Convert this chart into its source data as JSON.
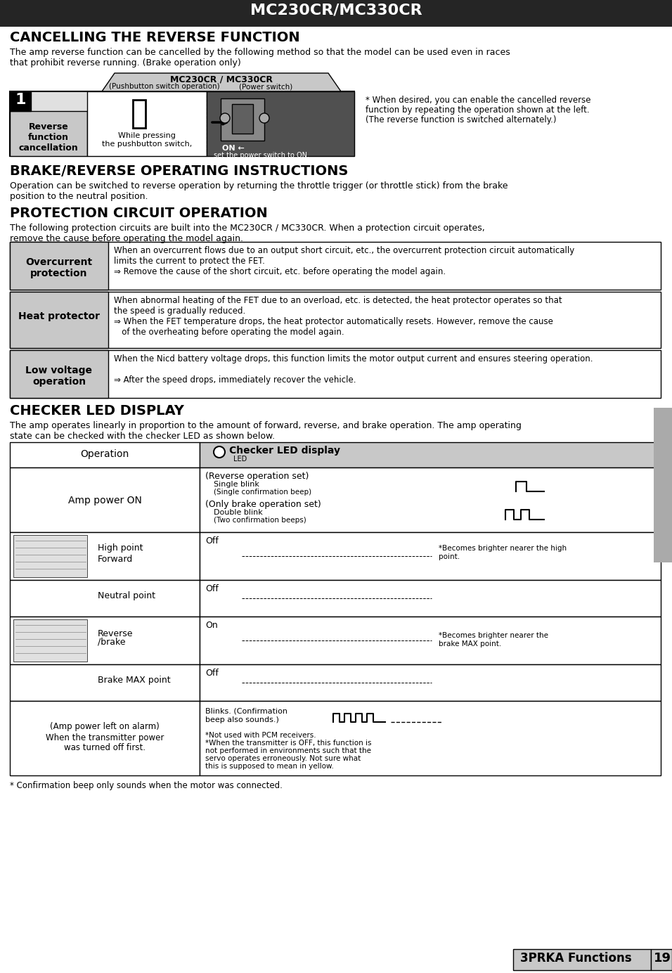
{
  "title": "MC230CR/MC330CR",
  "title_bg": "#252525",
  "title_color": "#ffffff",
  "page_bg": "#ffffff",
  "section1_title": "CANCELLING THE REVERSE FUNCTION",
  "section1_body": "The amp reverse function can be cancelled by the following method so that the model can be used even in races\nthat prohibit reverse running. (Brake operation only)",
  "section2_title": "BRAKE/REVERSE OPERATING INSTRUCTIONS",
  "section2_body": "Operation can be switched to reverse operation by returning the throttle trigger (or throttle stick) from the brake\nposition to the neutral position.",
  "section3_title": "PROTECTION CIRCUIT OPERATION",
  "section3_body": "The following protection circuits are built into the MC230CR / MC330CR. When a protection circuit operates,\nremove the cause before operating the model again.",
  "section4_title": "CHECKER LED DISPLAY",
  "section4_body": "The amp operates linearly in proportion to the amount of forward, reverse, and brake operation. The amp operating\nstate can be checked with the checker LED as shown below.",
  "footer_note": "* Confirmation beep only sounds when the motor was connected.",
  "page_label": "3PRKA Functions",
  "page_number": "19",
  "gray_bg": "#c8c8c8",
  "med_gray": "#b0b0b0",
  "light_gray": "#e0e0e0",
  "dark_gray": "#505050",
  "right_tab_color": "#aaaaaa"
}
